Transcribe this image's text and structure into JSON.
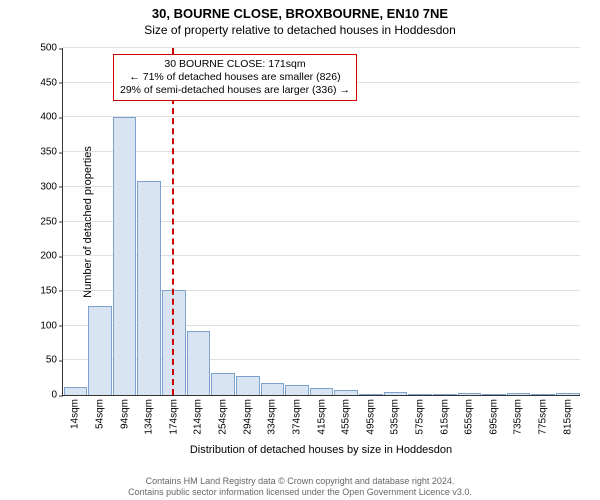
{
  "chart": {
    "type": "histogram",
    "title": "30, BOURNE CLOSE, BROXBOURNE, EN10 7NE",
    "subtitle": "Size of property relative to detached houses in Hoddesdon",
    "ylabel": "Number of detached properties",
    "xlabel": "Distribution of detached houses by size in Hoddesdon",
    "background_color": "#ffffff",
    "grid_color": "#e0e0e0",
    "axis_color": "#333333",
    "bar_fill": "#d8e4f2",
    "bar_stroke": "#7da2cc",
    "refline_color": "#cc0000",
    "title_fontsize": 13,
    "subtitle_fontsize": 12,
    "label_fontsize": 11,
    "tick_fontsize": 10,
    "ylim": [
      0,
      500
    ],
    "ytick_step": 50,
    "yticks": [
      0,
      50,
      100,
      150,
      200,
      250,
      300,
      350,
      400,
      450,
      500
    ],
    "categories": [
      "14sqm",
      "54sqm",
      "94sqm",
      "134sqm",
      "174sqm",
      "214sqm",
      "254sqm",
      "294sqm",
      "334sqm",
      "374sqm",
      "415sqm",
      "455sqm",
      "495sqm",
      "535sqm",
      "575sqm",
      "615sqm",
      "655sqm",
      "695sqm",
      "735sqm",
      "775sqm",
      "815sqm"
    ],
    "values": [
      12,
      128,
      400,
      308,
      152,
      92,
      32,
      28,
      18,
      14,
      10,
      7,
      0,
      5,
      0,
      0,
      3,
      0,
      3,
      0,
      3
    ],
    "reference_value_sqm": 171,
    "annotation": {
      "line1": "30 BOURNE CLOSE: 171sqm",
      "line2": "← 71% of detached houses are smaller (826)",
      "line3": "29% of semi-detached houses are larger (336) →",
      "border_color": "#cc0000",
      "bg_color": "#ffffff",
      "fontsize": 10.5
    },
    "footer_line1": "Contains HM Land Registry data © Crown copyright and database right 2024.",
    "footer_line2": "Contains public sector information licensed under the Open Government Licence v3.0.",
    "footer_color": "#666666",
    "footer_fontsize": 9
  }
}
